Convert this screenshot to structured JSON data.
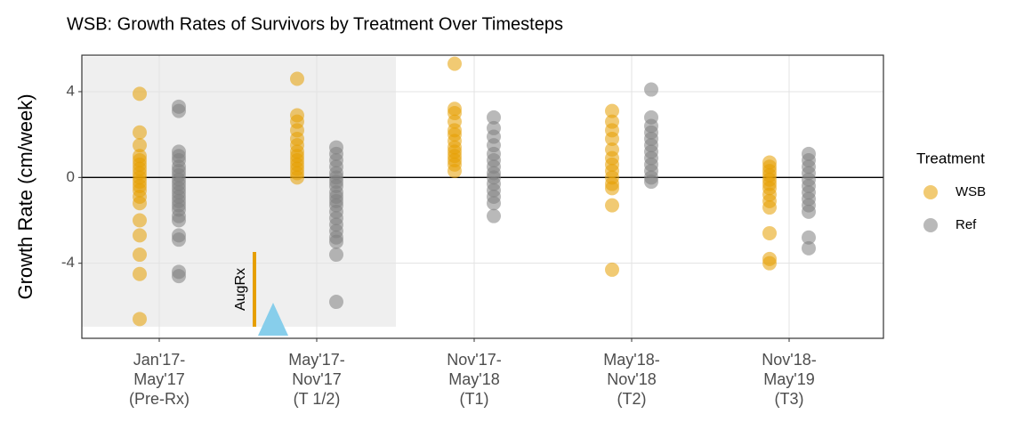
{
  "chart_data": {
    "type": "strip",
    "title": "WSB: Growth Rates of Survivors by Treatment Over Timesteps",
    "y_label": "Growth Rate (cm/week)",
    "legend_title": "Treatment",
    "legend_position": "right",
    "categories": [
      "Jan'17-\nMay'17\n(Pre-Rx)",
      "May'17-\nNov'17\n(T 1/2)",
      "Nov'17-\nMay'18\n(T1)",
      "May'18-\nNov'18\n(T2)",
      "Nov'18-\nMay'19\n(T3)"
    ],
    "ylim": [
      -7.5,
      5.7
    ],
    "yticks": [
      -4,
      0,
      4
    ],
    "grid": true,
    "hline": 0,
    "annotations": [
      {
        "text": "AugRx"
      }
    ],
    "series": [
      {
        "name": "WSB",
        "color": "#E69F00",
        "values": [
          [
            3.9,
            2.1,
            1.5,
            1.0,
            0.8,
            0.6,
            0.4,
            0.2,
            0.0,
            -0.2,
            -0.4,
            -0.6,
            -0.9,
            -1.2,
            -2.0,
            -2.7,
            -3.6,
            -4.5,
            -6.6
          ],
          [
            4.6,
            2.9,
            2.6,
            2.2,
            1.8,
            1.5,
            1.2,
            1.0,
            0.8,
            0.6,
            0.4,
            0.2,
            0.0
          ],
          [
            5.3,
            3.2,
            3.0,
            2.6,
            2.2,
            2.0,
            1.7,
            1.4,
            1.2,
            1.0,
            0.8,
            0.6,
            0.3
          ],
          [
            3.1,
            2.6,
            2.2,
            1.8,
            1.3,
            0.9,
            0.6,
            0.3,
            0.0,
            -0.3,
            -0.5,
            -1.3,
            -4.3
          ],
          [
            0.7,
            0.5,
            0.3,
            0.1,
            -0.1,
            -0.3,
            -0.5,
            -0.8,
            -1.1,
            -1.4,
            -2.6,
            -3.8,
            -4.0
          ]
        ]
      },
      {
        "name": "Ref",
        "color": "#7F7F7F",
        "values": [
          [
            3.3,
            3.1,
            1.2,
            1.0,
            0.8,
            0.5,
            0.3,
            0.1,
            -0.1,
            -0.3,
            -0.5,
            -0.7,
            -0.9,
            -1.1,
            -1.3,
            -1.5,
            -1.8,
            -2.0,
            -2.7,
            -2.9,
            -4.4,
            -4.6
          ],
          [
            1.4,
            1.1,
            0.8,
            0.5,
            0.2,
            0.0,
            -0.2,
            -0.4,
            -0.7,
            -0.9,
            -1.1,
            -1.3,
            -1.6,
            -1.9,
            -2.2,
            -2.5,
            -2.8,
            -3.0,
            -3.6,
            -5.8
          ],
          [
            2.8,
            2.3,
            1.9,
            1.5,
            1.1,
            0.8,
            0.5,
            0.2,
            0.0,
            -0.3,
            -0.6,
            -0.9,
            -1.2,
            -1.8
          ],
          [
            4.1,
            2.8,
            2.4,
            2.1,
            1.8,
            1.5,
            1.2,
            0.9,
            0.6,
            0.3,
            0.0,
            -0.2
          ],
          [
            1.1,
            0.8,
            0.5,
            0.2,
            -0.1,
            -0.4,
            -0.7,
            -1.0,
            -1.3,
            -1.6,
            -2.8,
            -3.3
          ]
        ]
      }
    ]
  }
}
